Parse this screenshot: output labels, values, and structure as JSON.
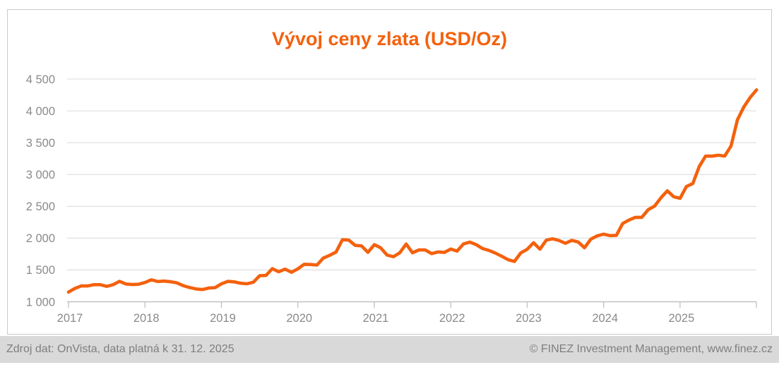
{
  "title": "Vývoj ceny zlata (USD/Oz)",
  "footer": {
    "left": "Zdroj dat: OnVista, data platná k 31. 12. 2025",
    "right": "© FINEZ Investment Management, www.finez.cz"
  },
  "colors": {
    "accent_orange": "#f4610d",
    "grid": "#dcdcdc",
    "axis": "#c0c0c0",
    "tick_label": "#8a8a8a",
    "frame_border": "#c9c9c9",
    "footer_bg": "#d9d9d9",
    "footer_text": "#7f7f7f"
  },
  "chart_data": {
    "type": "line",
    "title": "Vývoj ceny zlata (USD/Oz)",
    "xlabel": "",
    "ylabel": "",
    "legend": "none",
    "grid": "horizontal",
    "ylim": [
      1000,
      4500
    ],
    "series_name": "Cena zlata USD/Oz",
    "frequency": "monthly",
    "start_date": "2016-12",
    "end_date": "2025-12",
    "y_ticks": [
      {
        "value": 1000,
        "label": "1 000"
      },
      {
        "value": 1500,
        "label": "1 500"
      },
      {
        "value": 2000,
        "label": "2 000"
      },
      {
        "value": 2500,
        "label": "2 500"
      },
      {
        "value": 3000,
        "label": "3 000"
      },
      {
        "value": 3500,
        "label": "3 500"
      },
      {
        "value": 4000,
        "label": "4 000"
      },
      {
        "value": 4500,
        "label": "4 500"
      }
    ],
    "x_tick_labels": [
      "2017",
      "2018",
      "2019",
      "2020",
      "2021",
      "2022",
      "2023",
      "2024",
      "2025"
    ],
    "values": [
      1152,
      1210,
      1248,
      1249,
      1268,
      1269,
      1242,
      1269,
      1321,
      1280,
      1271,
      1275,
      1303,
      1345,
      1318,
      1325,
      1315,
      1298,
      1253,
      1224,
      1202,
      1192,
      1215,
      1222,
      1282,
      1321,
      1313,
      1292,
      1283,
      1306,
      1409,
      1414,
      1520,
      1472,
      1513,
      1464,
      1517,
      1589,
      1586,
      1577,
      1687,
      1730,
      1781,
      1976,
      1968,
      1886,
      1879,
      1777,
      1898,
      1848,
      1734,
      1708,
      1769,
      1907,
      1770,
      1814,
      1814,
      1757,
      1783,
      1775,
      1829,
      1797,
      1909,
      1937,
      1897,
      1837,
      1807,
      1766,
      1716,
      1661,
      1634,
      1769,
      1824,
      1928,
      1827,
      1969,
      1990,
      1963,
      1919,
      1965,
      1940,
      1849,
      1984,
      2036,
      2063,
      2040,
      2044,
      2230,
      2286,
      2327,
      2327,
      2448,
      2503,
      2635,
      2744,
      2651,
      2625,
      2812,
      2858,
      3124,
      3289,
      3289,
      3303,
      3290,
      3448,
      3859,
      4060,
      4210,
      4330
    ]
  }
}
